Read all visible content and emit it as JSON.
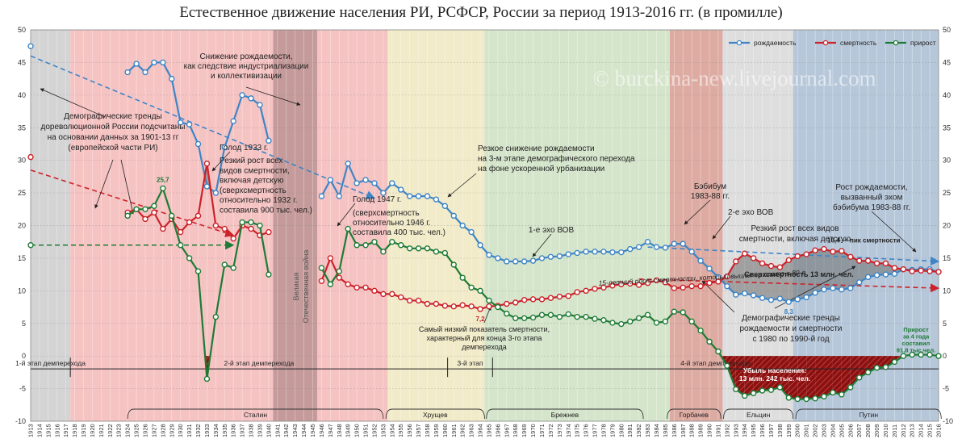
{
  "chart_data": {
    "type": "line",
    "title": "Естественное движение населения РИ, РСФСР, России за период 1913-2016 гг. (в промилле)",
    "watermark": "© burckina-new.livejournal.com",
    "x": [
      1913,
      1914,
      1915,
      1916,
      1917,
      1918,
      1919,
      1920,
      1921,
      1922,
      1923,
      1924,
      1925,
      1926,
      1927,
      1928,
      1929,
      1930,
      1931,
      1932,
      1933,
      1934,
      1935,
      1936,
      1937,
      1938,
      1939,
      1940,
      1941,
      1942,
      1943,
      1944,
      1945,
      1946,
      1947,
      1948,
      1949,
      1950,
      1951,
      1952,
      1953,
      1954,
      1955,
      1956,
      1957,
      1958,
      1959,
      1960,
      1961,
      1962,
      1963,
      1964,
      1965,
      1966,
      1967,
      1968,
      1969,
      1970,
      1971,
      1972,
      1973,
      1974,
      1975,
      1976,
      1977,
      1978,
      1979,
      1980,
      1981,
      1982,
      1983,
      1984,
      1985,
      1986,
      1987,
      1988,
      1989,
      1990,
      1991,
      1992,
      1993,
      1994,
      1995,
      1996,
      1997,
      1998,
      1999,
      2000,
      2001,
      2002,
      2003,
      2004,
      2005,
      2006,
      2007,
      2008,
      2009,
      2010,
      2011,
      2012,
      2013,
      2014,
      2015,
      2016
    ],
    "xlim": [
      1913,
      2016
    ],
    "xticks": [
      1913,
      1914,
      1915,
      1916,
      1917,
      1918,
      1919,
      1920,
      1921,
      1922,
      1923,
      1924,
      1925,
      1926,
      1927,
      1928,
      1929,
      1930,
      1931,
      1932,
      1933,
      1934,
      1935,
      1936,
      1937,
      1938,
      1939,
      1940,
      1941,
      1942,
      1943,
      1944,
      1945,
      1946,
      1947,
      1948,
      1949,
      1950,
      1951,
      1952,
      1953,
      1954,
      1955,
      1956,
      1957,
      1958,
      1959,
      1960,
      1961,
      1962,
      1963,
      1964,
      1965,
      1966,
      1967,
      1968,
      1969,
      1970,
      1971,
      1972,
      1973,
      1974,
      1975,
      1976,
      1977,
      1978,
      1979,
      1980,
      1981,
      1982,
      1983,
      1984,
      1985,
      1986,
      1987,
      1988,
      1989,
      1990,
      1991,
      1992,
      1993,
      1994,
      1995,
      1996,
      1997,
      1998,
      1999,
      2000,
      2001,
      2002,
      2003,
      2004,
      2005,
      2006,
      2007,
      2008,
      2009,
      2010,
      2011,
      2012,
      2013,
      2014,
      2015,
      2016
    ],
    "ylim": [
      -10,
      50
    ],
    "yticks": [
      -10,
      -5,
      0,
      5,
      10,
      15,
      20,
      25,
      30,
      35,
      40,
      45,
      50
    ],
    "grid": true,
    "legend": "top-right",
    "series": [
      {
        "name": "рождаемость",
        "color": "#3d85c6",
        "values": [
          47.5,
          null,
          null,
          null,
          null,
          null,
          null,
          null,
          null,
          null,
          null,
          43.5,
          44.8,
          43.5,
          45,
          45,
          42.5,
          35.8,
          35.5,
          32.5,
          26,
          25,
          32,
          36,
          40,
          39.5,
          38.5,
          33,
          null,
          null,
          null,
          null,
          null,
          24.5,
          27,
          24.5,
          29.5,
          26.5,
          27,
          26.5,
          25,
          26.5,
          25.5,
          24.5,
          24.5,
          24.5,
          24,
          23,
          21.5,
          20,
          19,
          17,
          15.5,
          15,
          14.5,
          14.5,
          14.5,
          14.6,
          15,
          15.2,
          15.3,
          15.6,
          15.8,
          16,
          16,
          16,
          15.9,
          15.9,
          16.4,
          16.7,
          17.5,
          16.7,
          16.6,
          17.2,
          17.2,
          16,
          14.6,
          13.4,
          12.1,
          10.7,
          9.4,
          9.6,
          9.3,
          8.9,
          8.6,
          8.8,
          8.3,
          8.7,
          9,
          9.7,
          10.2,
          10.4,
          10.2,
          10.4,
          11.3,
          12.1,
          12.4,
          12.5,
          12.6,
          13.3,
          13.2,
          13.3,
          13.3,
          12.9
        ],
        "value_labels": [
          null,
          null,
          null,
          null,
          null,
          null,
          null,
          null,
          null,
          null,
          null,
          null,
          null,
          null,
          null,
          null,
          null,
          null,
          null,
          null,
          null,
          null,
          null,
          null,
          null,
          null,
          null,
          null,
          null,
          null,
          null,
          null,
          null,
          null,
          null,
          null,
          null,
          null,
          null,
          null,
          null,
          null,
          null,
          null,
          null,
          null,
          null,
          null,
          null,
          null,
          null,
          null,
          null,
          null,
          null,
          null,
          null,
          null,
          null,
          null,
          null,
          null,
          null,
          null,
          null,
          null,
          null,
          null,
          null,
          null,
          null,
          null,
          null,
          null,
          null,
          null,
          null,
          null,
          null,
          null,
          null,
          null,
          null,
          null,
          null,
          null,
          "8,3",
          null,
          null,
          null,
          null,
          null,
          null,
          null,
          null,
          null,
          null,
          null,
          null,
          null,
          null,
          null,
          null,
          null
        ]
      },
      {
        "name": "смертность",
        "color": "#cc2229",
        "values": [
          30.5,
          null,
          null,
          null,
          null,
          null,
          null,
          null,
          null,
          null,
          null,
          22,
          22.5,
          21,
          22,
          19.5,
          21,
          19,
          20.5,
          21.5,
          29.5,
          20,
          19.5,
          18,
          20,
          19.5,
          18.5,
          19,
          null,
          null,
          null,
          null,
          null,
          11.5,
          15,
          12,
          11,
          10.5,
          10.5,
          10,
          9.5,
          9.5,
          9,
          8.5,
          8.5,
          8,
          8,
          7.7,
          7.6,
          7.8,
          7.6,
          7.2,
          7.6,
          7.7,
          8,
          8.2,
          8.6,
          8.7,
          8.7,
          8.9,
          9.1,
          9.2,
          9.8,
          10,
          10.3,
          10.5,
          10.8,
          11,
          11.1,
          10.9,
          11.2,
          11.6,
          11.3,
          10.4,
          10.5,
          10.7,
          10.7,
          11.2,
          11.4,
          12.2,
          14.5,
          15.7,
          15,
          14.2,
          13.8,
          13.6,
          14.7,
          15.3,
          15.6,
          16.2,
          16.4,
          16,
          16.1,
          15.2,
          14.6,
          14.6,
          14.2,
          14.2,
          13.5,
          13.3,
          13,
          13.1,
          13,
          12.9
        ],
        "value_labels": [
          null,
          null,
          null,
          null,
          null,
          null,
          null,
          null,
          null,
          null,
          null,
          null,
          null,
          null,
          null,
          null,
          null,
          null,
          null,
          null,
          null,
          null,
          null,
          null,
          null,
          null,
          null,
          null,
          null,
          null,
          null,
          null,
          null,
          null,
          null,
          null,
          null,
          null,
          null,
          null,
          null,
          null,
          null,
          null,
          null,
          null,
          null,
          null,
          null,
          null,
          null,
          "7,2",
          null,
          null,
          null,
          null,
          null,
          null,
          null,
          null,
          null,
          null,
          null,
          null,
          null,
          null,
          null,
          null,
          null,
          null,
          null,
          null,
          null,
          null,
          null,
          null,
          null,
          null,
          null,
          null,
          null,
          null,
          null,
          null,
          null,
          null,
          null,
          null,
          null,
          null,
          "16,4 — пик смертности",
          null,
          null,
          null,
          null,
          null,
          null,
          null,
          null,
          null,
          null,
          null,
          null,
          null
        ]
      },
      {
        "name": "прирост",
        "color": "#1e7b35",
        "values": [
          17,
          null,
          null,
          null,
          null,
          null,
          null,
          null,
          null,
          null,
          null,
          21.5,
          22.5,
          22.5,
          23,
          25.7,
          21.5,
          17,
          15,
          13,
          -3.5,
          6,
          14,
          13.5,
          20.5,
          20.5,
          20,
          12.5,
          null,
          null,
          null,
          null,
          null,
          13.5,
          11,
          13,
          19.5,
          17,
          17,
          17.5,
          16,
          17.5,
          17,
          16.5,
          16.5,
          16.5,
          16,
          15.8,
          14,
          12,
          10.5,
          10,
          8.5,
          7.5,
          6.5,
          5.8,
          5.8,
          5.9,
          6.3,
          6.3,
          6,
          6.4,
          6,
          6,
          5.7,
          5.5,
          5.1,
          4.9,
          5.3,
          5.8,
          6.3,
          5.1,
          5.3,
          6.8,
          6.7,
          5.3,
          3.9,
          2.2,
          0.7,
          -1.5,
          -5.1,
          -6.1,
          -5.7,
          -5.3,
          -5.2,
          -4.8,
          -6.4,
          -6.6,
          -6.6,
          -6.5,
          -6.2,
          -5.6,
          -5.9,
          -4.8,
          -3.3,
          -2.5,
          -1.8,
          -1.7,
          -0.9,
          0,
          0.2,
          0.2,
          0.2,
          0
        ],
        "value_labels": [
          null,
          null,
          null,
          null,
          null,
          null,
          null,
          null,
          null,
          null,
          null,
          null,
          null,
          null,
          null,
          "25,7",
          null,
          null,
          null,
          null,
          null,
          null,
          null,
          null,
          null,
          null,
          null,
          null,
          null,
          null,
          null,
          null,
          null,
          null,
          null,
          null,
          null,
          null,
          null,
          null,
          null,
          null,
          null,
          null,
          null,
          null,
          null,
          null,
          null,
          null,
          null,
          null,
          null,
          null,
          null,
          null,
          null,
          null,
          null,
          null,
          null,
          null,
          null,
          null,
          null,
          null,
          null,
          null,
          null,
          null,
          null,
          null,
          null,
          null,
          null,
          null,
          null,
          null,
          null,
          null,
          null,
          null,
          null,
          null,
          null,
          null,
          null,
          null,
          null,
          null,
          null,
          null,
          null,
          null,
          null,
          null,
          null,
          null,
          null,
          null,
          null,
          null,
          null,
          null
        ]
      }
    ],
    "trend_lines": [
      {
        "color": "#3d85c6",
        "x": [
          1913,
          1952
        ],
        "y": [
          46,
          24.2
        ]
      },
      {
        "color": "#cc2229",
        "x": [
          1913,
          1936
        ],
        "y": [
          28.5,
          18.5
        ]
      },
      {
        "color": "#1e7b35",
        "x": [
          1913,
          1936
        ],
        "y": [
          17,
          17
        ]
      },
      {
        "color": "#3d85c6",
        "x": [
          1983,
          2016
        ],
        "y": [
          16.7,
          14.5
        ]
      },
      {
        "color": "#cc2229",
        "x": [
          1982,
          2016
        ],
        "y": [
          11.8,
          10.4
        ]
      }
    ],
    "periods": [
      {
        "start": 1912.5,
        "end": 1917.5,
        "color": "#d4d4d4"
      },
      {
        "start": 1917.5,
        "end": 1940.5,
        "color": "#f6c3c3"
      },
      {
        "start": 1940.5,
        "end": 1945.5,
        "color": "#c59a9a"
      },
      {
        "start": 1945.5,
        "end": 1953.5,
        "color": "#f6c3c3"
      },
      {
        "start": 1953.5,
        "end": 1964.5,
        "color": "#f2ebc9"
      },
      {
        "start": 1964.5,
        "end": 1985.5,
        "color": "#d5e5cb"
      },
      {
        "start": 1985.5,
        "end": 1991.5,
        "color": "#ddaba2"
      },
      {
        "start": 1991.5,
        "end": 1999.5,
        "color": "#dedede"
      },
      {
        "start": 1999.5,
        "end": 2016.5,
        "color": "#b7c7da"
      }
    ],
    "stages": [
      {
        "label": "1-й этап демперехода",
        "start": 1912.5,
        "end": 1917.5
      },
      {
        "label": "2-й этап демперехода",
        "start": 1917.5,
        "end": 1960.3
      },
      {
        "label": "3-й этап",
        "start": 1960.3,
        "end": 1965.4
      },
      {
        "label": "4-й этап демперехода",
        "start": 1965.4,
        "end": 2016.5
      }
    ],
    "leaders": [
      {
        "label": "Сталин",
        "start": 1924,
        "end": 1953
      },
      {
        "label": "Хрущев",
        "start": 1953.3,
        "end": 1964.5
      },
      {
        "label": "Брежнев",
        "start": 1964.7,
        "end": 1982.5
      },
      {
        "label": "Горбачев",
        "start": 1985.2,
        "end": 1991.3
      },
      {
        "label": "Ельцин",
        "start": 1991.6,
        "end": 1999.5
      },
      {
        "label": "Путин",
        "start": 1999.8,
        "end": 2016.3
      }
    ],
    "annotations": [
      {
        "lines": [
          "Снижение рождаемости,",
          "как следствие индустриализации",
          "и коллективизации"
        ]
      },
      {
        "lines": [
          "Демографические тренды",
          "дореволюционной России подсчитаны",
          "на основании данных за 1901-13 гг",
          "(европейской части РИ)"
        ]
      },
      {
        "lines": [
          "Голод 1933 г."
        ]
      },
      {
        "lines": [
          "Резкий рост всех",
          "видов смертности,",
          "включая детскую",
          "(сверхсмертность",
          "относительно 1932 г.",
          "составила 900 тыс. чел.)"
        ]
      },
      {
        "lines": [
          "Голод 1947 г."
        ]
      },
      {
        "lines": [
          "(сверхсмертность",
          "относительно 1946 г.",
          "составила 400 тыс. чел.)"
        ]
      },
      {
        "lines": [
          "Резкое снижение рождаемости",
          "на 3-м этапе демографического перехода",
          "на фоне ускоренной урбанизации"
        ]
      },
      {
        "lines": [
          "1-е эхо ВОВ"
        ]
      },
      {
        "lines": [
          "Бэбибум",
          "1983-88 гг."
        ]
      },
      {
        "lines": [
          "2-е эхо ВОВ"
        ]
      },
      {
        "lines": [
          "Резкий рост всех видов",
          "смертности, включая детскую"
        ]
      },
      {
        "lines": [
          "Рост рождаемости,",
          "вызванный эхом",
          "бэбибума 1983-88 гг."
        ]
      },
      {
        "lines": [
          "15-летний рост смертности, который вышел на плато в 80-е"
        ]
      },
      {
        "lines": [
          "Самый низкий показатель смертности,",
          "характерный для конца 3-го этапа",
          "демперехода"
        ]
      },
      {
        "lines": [
          "Демографические тренды",
          "рождаемости и смертности",
          "с 1980 по 1990-й год"
        ]
      },
      {
        "lines": [
          "Сверхсмертность 13 млн. чел."
        ]
      },
      {
        "lines": [
          "Убыль населения:",
          "13 млн. 242 тыс. чел."
        ]
      },
      {
        "lines": [
          "Прирост",
          "за 4 года",
          "составил",
          "91,8 тыс.чел."
        ]
      },
      {
        "lines": [
          "Великая",
          "Отечественная война"
        ]
      }
    ]
  }
}
